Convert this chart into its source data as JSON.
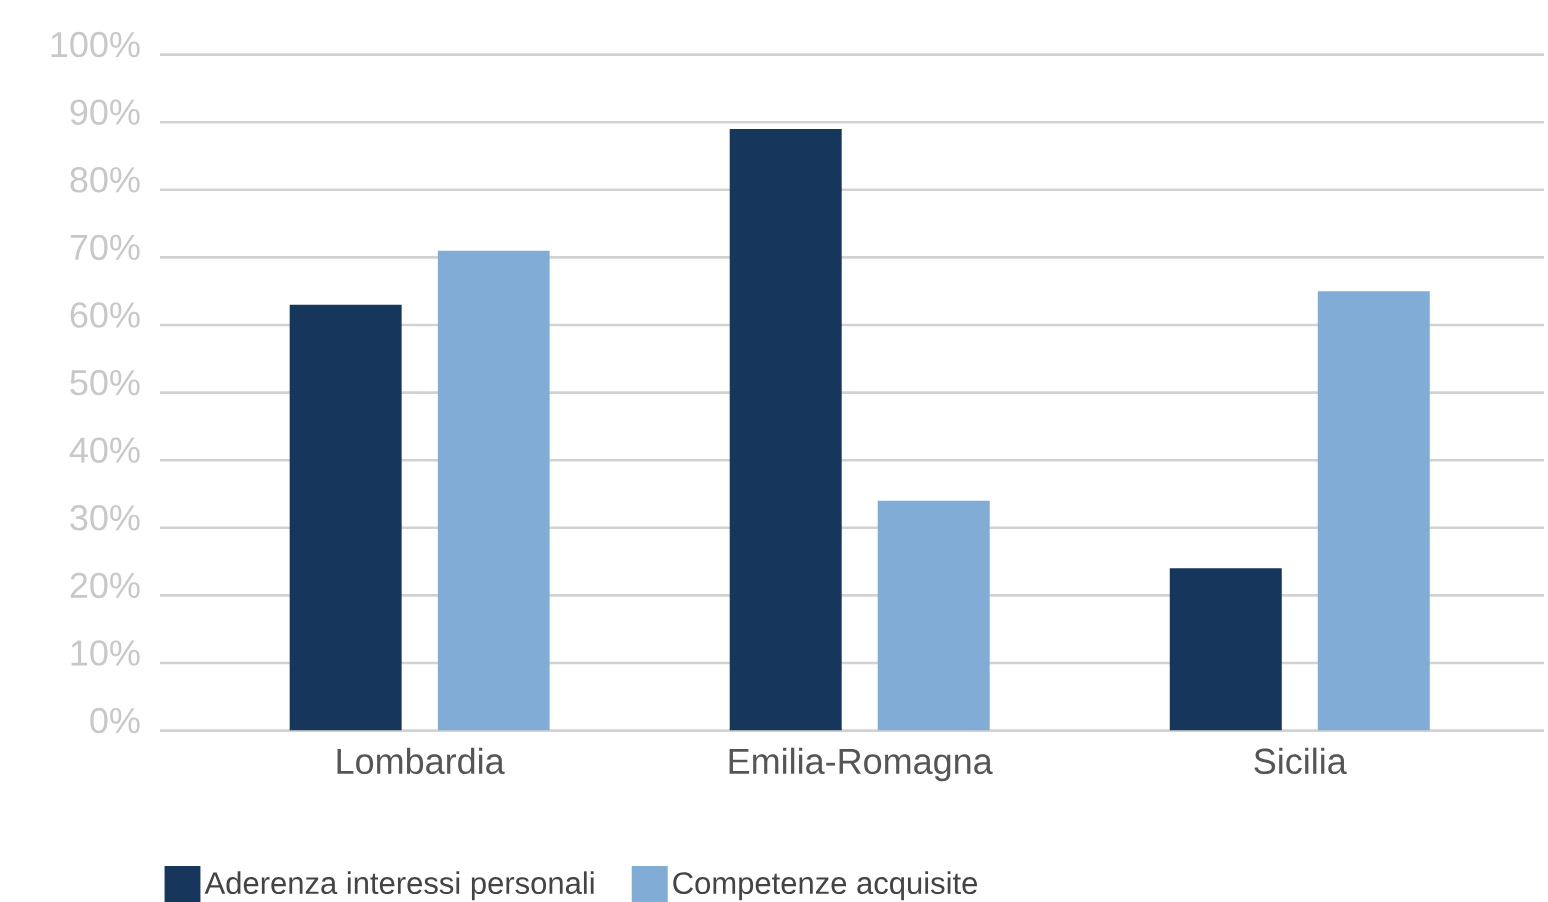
{
  "chart_data": {
    "type": "bar",
    "categories": [
      "Lombardia",
      "Emilia-Romagna",
      "Sicilia"
    ],
    "series": [
      {
        "name": "Aderenza interessi personali",
        "color": "#16365c",
        "values": [
          63,
          89,
          24
        ]
      },
      {
        "name": "Competenze acquisite",
        "color": "#81acd6",
        "values": [
          71,
          34,
          65
        ]
      }
    ],
    "ylim": [
      0,
      100
    ],
    "yticks": [
      {
        "value": 0,
        "label": "0%"
      },
      {
        "value": 10,
        "label": "10%"
      },
      {
        "value": 20,
        "label": "20%"
      },
      {
        "value": 30,
        "label": "30%"
      },
      {
        "value": 40,
        "label": "40%"
      },
      {
        "value": 50,
        "label": "50%"
      },
      {
        "value": 60,
        "label": "60%"
      },
      {
        "value": 70,
        "label": "70%"
      },
      {
        "value": 80,
        "label": "80%"
      },
      {
        "value": 90,
        "label": "90%"
      },
      {
        "value": 100,
        "label": "100%"
      }
    ],
    "grid": "y",
    "legend": "bottom left"
  }
}
